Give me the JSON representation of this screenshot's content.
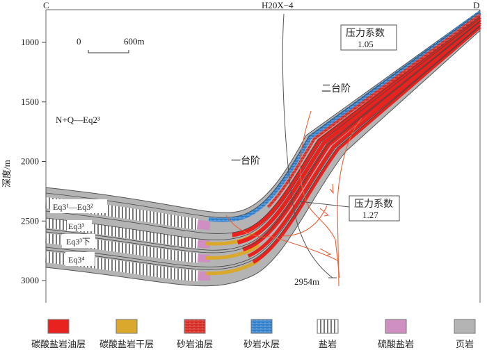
{
  "section": {
    "left_label": "C",
    "right_label": "D",
    "well_label": "H20X−4",
    "well_depth": "2954m",
    "y_axis_label": "深度/m",
    "y_ticks": [
      "1000",
      "1500",
      "2000",
      "2500",
      "3000"
    ],
    "scale_bar": {
      "start": "0",
      "end": "600m"
    },
    "overburden_label": "N+Q—Eq2³",
    "step_labels": [
      "一台阶",
      "二台阶"
    ],
    "pressure_boxes": [
      {
        "title": "压力系数",
        "value": "1.05"
      },
      {
        "title": "压力系数",
        "value": "1.27"
      }
    ],
    "layer_labels": [
      "Eq3¹—Eq3²",
      "Eq3³",
      "Eq3³下",
      "Eq3⁴"
    ]
  },
  "legend": [
    {
      "label": "碳酸盐岩油层",
      "color": "#e8231f",
      "pattern": "solid"
    },
    {
      "label": "碳酸盐岩干层",
      "color": "#d9a82c",
      "pattern": "solid"
    },
    {
      "label": "砂岩油层",
      "color": "#d32a22",
      "pattern": "brick"
    },
    {
      "label": "砂岩水层",
      "color": "#2f7cc8",
      "pattern": "brick"
    },
    {
      "label": "盐岩",
      "color": "#ffffff",
      "pattern": "vertical-lines"
    },
    {
      "label": "硫酸盐岩",
      "color": "#cf8fc0",
      "pattern": "solid"
    },
    {
      "label": "页岩",
      "color": "#b4b4b4",
      "pattern": "solid"
    }
  ]
}
